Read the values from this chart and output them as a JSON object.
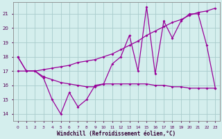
{
  "xlabel": "Windchill (Refroidissement éolien,°C)",
  "x": [
    0,
    1,
    2,
    3,
    4,
    5,
    6,
    7,
    8,
    9,
    10,
    11,
    12,
    13,
    14,
    15,
    16,
    17,
    18,
    19,
    20,
    21,
    22,
    23
  ],
  "y_main": [
    18,
    17,
    17,
    16.5,
    15,
    14,
    15.5,
    14.5,
    15,
    16,
    16.1,
    17.5,
    18,
    19.5,
    17,
    21.5,
    16.8,
    20.5,
    19.3,
    20.5,
    21,
    21,
    18.8,
    15.8
  ],
  "y_upper": [
    17,
    17,
    17,
    17.1,
    17.2,
    17.3,
    17.4,
    17.6,
    17.7,
    17.8,
    18.0,
    18.2,
    18.5,
    18.8,
    19.1,
    19.5,
    19.8,
    20.1,
    20.4,
    20.6,
    20.9,
    21.1,
    21.2,
    21.4
  ],
  "y_lower": [
    18,
    17,
    17,
    16.6,
    16.4,
    16.2,
    16.1,
    16.0,
    15.9,
    15.9,
    16.1,
    16.1,
    16.1,
    16.1,
    16.1,
    16.1,
    16.0,
    16.0,
    15.9,
    15.9,
    15.8,
    15.8,
    15.8,
    15.8
  ],
  "line_color": "#990099",
  "bg_color": "#d4eeed",
  "grid_color": "#a8cccc",
  "ylim": [
    13.5,
    21.8
  ],
  "yticks": [
    14,
    15,
    16,
    17,
    18,
    19,
    20,
    21
  ],
  "xticks": [
    0,
    1,
    2,
    3,
    4,
    5,
    6,
    7,
    8,
    9,
    10,
    11,
    12,
    13,
    14,
    15,
    16,
    17,
    18,
    19,
    20,
    21,
    22,
    23
  ]
}
